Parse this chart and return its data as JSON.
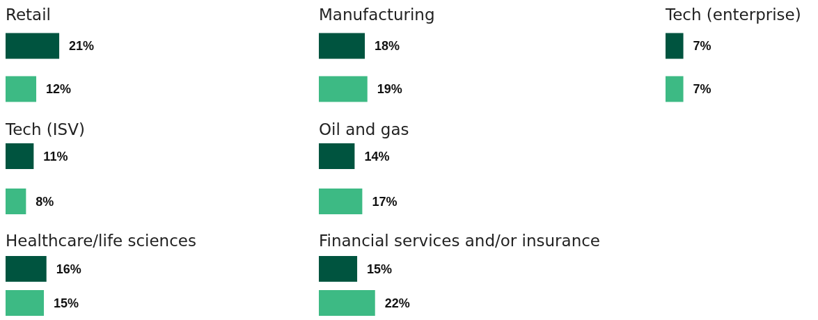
{
  "chart_data": [
    {
      "type": "bar",
      "orientation": "horizontal",
      "title": "Retail",
      "categories": [
        null,
        null
      ],
      "values": [
        21,
        12
      ],
      "colors": [
        "#00543f",
        "#3dba84"
      ],
      "value_labels": [
        "21%",
        "12%"
      ],
      "tick_labels": false
    },
    {
      "type": "bar",
      "orientation": "horizontal",
      "title": "Manufacturing",
      "categories": [
        null,
        null
      ],
      "values": [
        18,
        19
      ],
      "colors": [
        "#00543f",
        "#3dba84"
      ],
      "value_labels": [
        "18%",
        "19%"
      ],
      "tick_labels": false
    },
    {
      "type": "bar",
      "orientation": "horizontal",
      "title": "Tech (enterprise)",
      "categories": [
        null,
        null
      ],
      "values": [
        7,
        7
      ],
      "colors": [
        "#00543f",
        "#3dba84"
      ],
      "value_labels": [
        "7%",
        "7%"
      ],
      "tick_labels": false
    },
    {
      "type": "bar",
      "orientation": "horizontal",
      "title": "Tech (ISV)",
      "categories": [
        null,
        null
      ],
      "values": [
        11,
        8
      ],
      "colors": [
        "#00543f",
        "#3dba84"
      ],
      "value_labels": [
        "11%",
        "8%"
      ],
      "tick_labels": false
    },
    {
      "type": "bar",
      "orientation": "horizontal",
      "title": "Oil and gas",
      "categories": [
        null,
        null
      ],
      "values": [
        14,
        17
      ],
      "colors": [
        "#00543f",
        "#3dba84"
      ],
      "value_labels": [
        "14%",
        "17%"
      ],
      "tick_labels": false
    },
    {
      "type": "bar",
      "orientation": "horizontal",
      "title": "Healthcare/life sciences",
      "categories": [
        null,
        null
      ],
      "values": [
        16,
        15
      ],
      "colors": [
        "#00543f",
        "#3dba84"
      ],
      "value_labels": [
        "16%",
        "15%"
      ],
      "tick_labels": false
    },
    {
      "type": "bar",
      "orientation": "horizontal",
      "title": "Financial services and/or insurance",
      "categories": [
        null,
        null
      ],
      "values": [
        15,
        22
      ],
      "colors": [
        "#00543f",
        "#3dba84"
      ],
      "value_labels": [
        "15%",
        "22%"
      ],
      "tick_labels": false
    }
  ]
}
